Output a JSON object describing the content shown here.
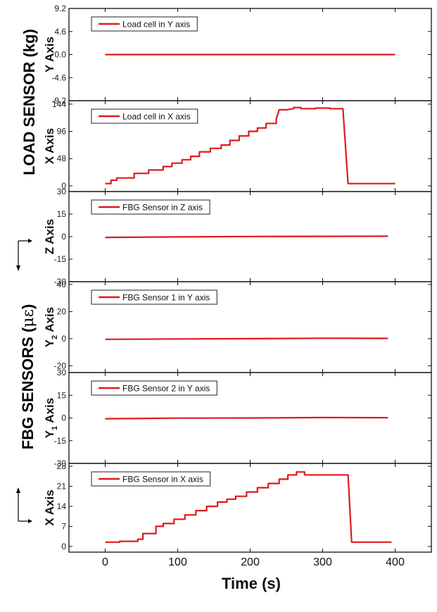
{
  "chart_data": {
    "type": "line",
    "xlabel": "Time (s)",
    "xlim": [
      -50,
      450
    ],
    "xticks": [
      0,
      100,
      200,
      300,
      400
    ],
    "line_color": "#e0191f",
    "group_labels": {
      "load": "LOAD SENSOR (kg)",
      "fbg_prefix": "FBG SENSORS (",
      "fbg_unit": "με",
      "fbg_suffix": ")"
    },
    "panels": [
      {
        "ylabel": "Y Axis",
        "ylim": [
          -9.2,
          9.2
        ],
        "yticks": [
          "9.2",
          "4.6",
          "0.0",
          "-4.6",
          "-9.2"
        ],
        "series": [
          {
            "name": "Load cell in Y axis",
            "x": [
              0,
              400
            ],
            "y": [
              0,
              0
            ]
          }
        ]
      },
      {
        "ylabel": "X Axis",
        "ylim": [
          -10,
          150
        ],
        "yticks": [
          "144",
          "96",
          "48",
          "0"
        ],
        "series": [
          {
            "name": "Load cell in X axis",
            "x": [
              0,
              8,
              8,
              16,
              16,
              40,
              40,
              60,
              60,
              80,
              80,
              92,
              92,
              106,
              106,
              118,
              118,
              130,
              130,
              145,
              145,
              160,
              160,
              172,
              172,
              185,
              185,
              198,
              198,
              210,
              210,
              222,
              222,
              236,
              236,
              240,
              250,
              260,
              260,
              270,
              270,
              290,
              290,
              310,
              310,
              328,
              335,
              340,
              400
            ],
            "y": [
              4,
              4,
              10,
              10,
              14,
              14,
              22,
              22,
              28,
              28,
              34,
              34,
              40,
              40,
              46,
              46,
              52,
              52,
              60,
              60,
              66,
              66,
              72,
              72,
              80,
              80,
              88,
              88,
              96,
              96,
              102,
              102,
              110,
              110,
              118,
              134,
              134,
              136,
              138,
              138,
              136,
              136,
              137,
              137,
              136,
              136,
              4,
              4,
              4
            ]
          }
        ]
      },
      {
        "ylabel": "Z Axis",
        "ylim": [
          -30,
          30
        ],
        "yticks": [
          "30",
          "15",
          "0",
          "-15",
          "-30"
        ],
        "series": [
          {
            "name": "FBG Sensor in Z axis",
            "x": [
              0,
              100,
              200,
              300,
              390
            ],
            "y": [
              -0.5,
              -0.2,
              0.1,
              0.2,
              0.3
            ]
          }
        ]
      },
      {
        "ylabel": "Y",
        "ylabel_sub": "2",
        "ylabel_suffix": " Axis",
        "ylim": [
          -25,
          42
        ],
        "yticks": [
          "40",
          "20",
          "0",
          "-20"
        ],
        "series": [
          {
            "name": "FBG Sensor 1 in Y axis",
            "x": [
              0,
              100,
              200,
              300,
              390
            ],
            "y": [
              -0.5,
              -0.2,
              0.0,
              0.3,
              0.2
            ]
          }
        ]
      },
      {
        "ylabel": "Y",
        "ylabel_sub": "1",
        "ylabel_suffix": " Axis",
        "ylim": [
          -30,
          30
        ],
        "yticks": [
          "30",
          "15",
          "0",
          "-15",
          "-30"
        ],
        "series": [
          {
            "name": "FBG Sensor 2 in Y axis",
            "x": [
              0,
              100,
              200,
              300,
              390
            ],
            "y": [
              -0.5,
              -0.1,
              0.0,
              0.3,
              0.2
            ]
          }
        ]
      },
      {
        "ylabel": "X Axis",
        "ylim": [
          -2,
          29
        ],
        "yticks": [
          "28",
          "21",
          "14",
          "7",
          "0"
        ],
        "series": [
          {
            "name": "FBG Sensor in X axis",
            "x": [
              0,
              20,
              20,
              45,
              45,
              52,
              52,
              70,
              70,
              80,
              80,
              95,
              95,
              110,
              110,
              125,
              125,
              140,
              140,
              155,
              155,
              168,
              168,
              180,
              180,
              195,
              195,
              210,
              210,
              225,
              225,
              240,
              240,
              252,
              252,
              264,
              264,
              275,
              275,
              335,
              340,
              345,
              395
            ],
            "y": [
              1.5,
              1.5,
              1.8,
              1.8,
              2.5,
              2.5,
              4.5,
              4.5,
              7,
              7,
              8,
              8,
              9.5,
              9.5,
              11,
              11,
              12.5,
              12.5,
              14,
              14,
              15.5,
              15.5,
              16.5,
              16.5,
              17.5,
              17.5,
              19,
              19,
              20.5,
              20.5,
              22,
              22,
              23.5,
              23.5,
              25,
              25,
              26,
              26,
              25,
              25,
              1.5,
              1.5,
              1.5
            ]
          }
        ]
      }
    ]
  }
}
